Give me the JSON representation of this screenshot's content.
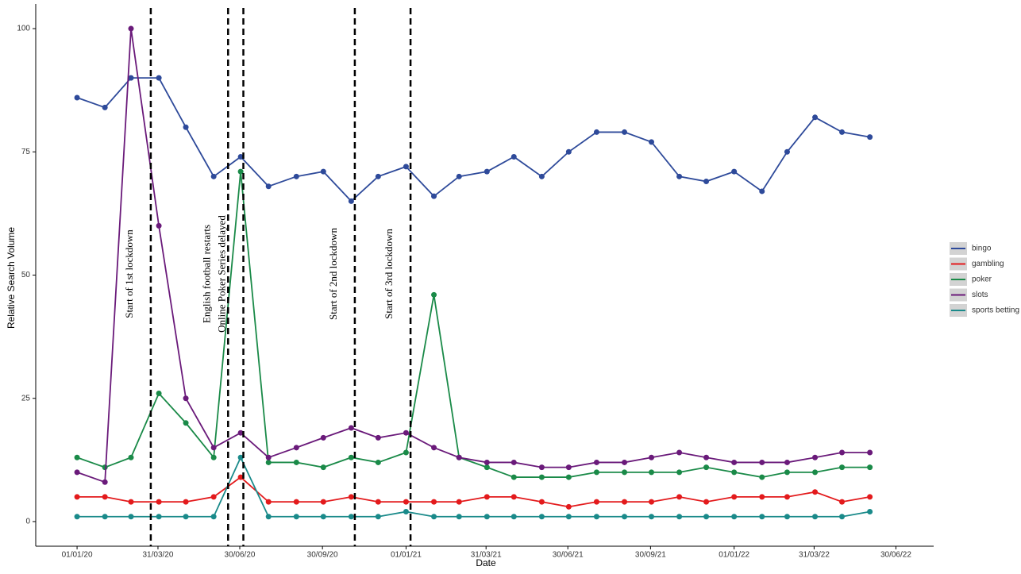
{
  "chart_data": {
    "type": "line",
    "x_label": "Date",
    "y_label": "Relative Search Volume",
    "x": [
      "01/01/20",
      "01/02/20",
      "01/03/20",
      "01/04/20",
      "01/05/20",
      "01/06/20",
      "01/07/20",
      "01/08/20",
      "01/09/20",
      "01/10/20",
      "01/11/20",
      "01/12/20",
      "01/01/21",
      "01/02/21",
      "01/03/21",
      "01/04/21",
      "01/05/21",
      "01/06/21",
      "01/07/21",
      "01/08/21",
      "01/09/21",
      "01/10/21",
      "01/11/21",
      "01/12/21",
      "01/01/22",
      "01/02/22",
      "01/03/22",
      "01/04/22",
      "01/05/22",
      "01/06/22"
    ],
    "series": [
      {
        "name": "bingo",
        "color": "#2e4a9a",
        "values": [
          86,
          84,
          90,
          90,
          80,
          70,
          74,
          68,
          70,
          71,
          65,
          70,
          72,
          66,
          70,
          71,
          74,
          70,
          75,
          79,
          79,
          77,
          70,
          69,
          71,
          67,
          75,
          82,
          79,
          78
        ]
      },
      {
        "name": "gambling",
        "color": "#e31a1c",
        "values": [
          5,
          5,
          4,
          4,
          4,
          5,
          9,
          4,
          4,
          4,
          5,
          4,
          4,
          4,
          4,
          5,
          5,
          4,
          3,
          4,
          4,
          4,
          5,
          4,
          5,
          5,
          5,
          6,
          4,
          5
        ]
      },
      {
        "name": "poker",
        "color": "#1a8a48",
        "values": [
          13,
          11,
          13,
          26,
          20,
          13,
          71,
          12,
          12,
          11,
          13,
          12,
          14,
          46,
          13,
          11,
          9,
          9,
          9,
          10,
          10,
          10,
          10,
          11,
          10,
          9,
          10,
          10,
          11,
          11
        ]
      },
      {
        "name": "slots",
        "color": "#6a1a7a",
        "values": [
          10,
          8,
          100,
          60,
          25,
          15,
          18,
          13,
          15,
          17,
          19,
          17,
          18,
          15,
          13,
          12,
          12,
          11,
          11,
          12,
          12,
          13,
          14,
          13,
          12,
          12,
          12,
          13,
          14,
          14
        ]
      },
      {
        "name": "sports betting",
        "color": "#1a8a8a",
        "values": [
          1,
          1,
          1,
          1,
          1,
          1,
          13,
          1,
          1,
          1,
          1,
          1,
          2,
          1,
          1,
          1,
          1,
          1,
          1,
          1,
          1,
          1,
          1,
          1,
          1,
          1,
          1,
          1,
          1,
          2
        ]
      }
    ],
    "xlim": [
      "16/11/19",
      "11/08/22"
    ],
    "xticks": [
      "01/01/20",
      "31/03/20",
      "30/06/20",
      "30/09/20",
      "01/01/21",
      "31/03/21",
      "30/06/21",
      "30/09/21",
      "01/01/22",
      "31/03/22",
      "30/06/22"
    ],
    "ylim": [
      -5,
      105
    ],
    "yticks": [
      0,
      25,
      50,
      75,
      100
    ],
    "annotations": [
      {
        "x": "23/03/20",
        "text": "Start of 1st lockdown"
      },
      {
        "x": "17/06/20",
        "text": "English football restarts"
      },
      {
        "x": "04/07/20",
        "text": "Online Poker Series delayed"
      },
      {
        "x": "05/11/20",
        "text": "Start of 2nd lockdown"
      },
      {
        "x": "06/01/21",
        "text": "Start of 3rd lockdown"
      }
    ],
    "legend": "right"
  }
}
